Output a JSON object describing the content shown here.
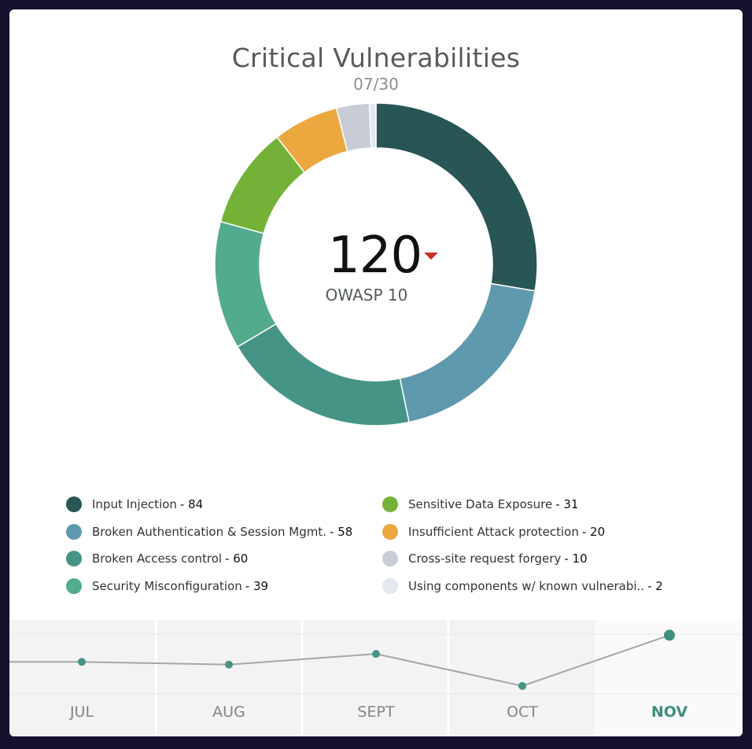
{
  "title": "Critical Vulnerabilities",
  "date": "07/30",
  "center": {
    "value": "120",
    "label": "OWASP 10",
    "trend": "down",
    "trend_color": "#c8302e"
  },
  "chart_data": [
    {
      "type": "pie",
      "variant": "donut",
      "title": "Critical Vulnerabilities",
      "subtitle": "07/30",
      "categories": [
        "Input Injection",
        "Broken Authentication & Session Mgmt.",
        "Broken Access control",
        "Security Misconfiguration",
        "Sensitive Data Exposure",
        "Insufficient Attack protection",
        "Cross-site request forgery",
        "Using components w/ known vulnerabi.."
      ],
      "values": [
        84,
        58,
        60,
        39,
        31,
        20,
        10,
        2
      ],
      "colors": [
        "#275654",
        "#5f99ae",
        "#469486",
        "#53ab8d",
        "#74b237",
        "#eaa83f",
        "#c8ccd6",
        "#e3e8ef"
      ],
      "legend": "bottom"
    },
    {
      "type": "line",
      "categories": [
        "JUL",
        "AUG",
        "SEPT",
        "OCT",
        "NOV"
      ],
      "values": [
        120,
        118,
        126,
        102,
        140
      ],
      "highlight": "NOV",
      "line_color": "#a6a6a6",
      "point_color": "#469486",
      "highlight_color": "#3f8e7e"
    }
  ]
}
